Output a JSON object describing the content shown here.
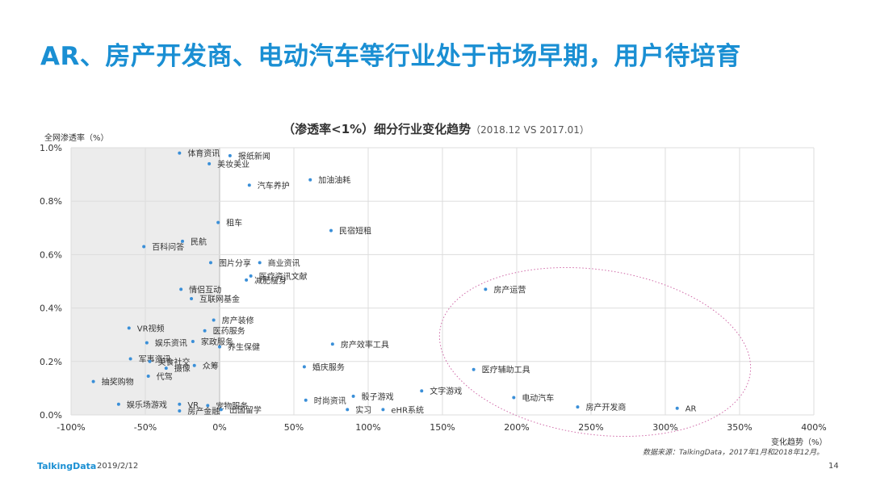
{
  "page": {
    "title": "AR、房产开发商、电动汽车等行业处于市场早期，用户待培育",
    "chart_title_main": "（渗透率<1%）细分行业变化趋势",
    "chart_title_sub": "（2018.12  VS 2017.01）",
    "source": "数据来源：TalkingData，2017年1月和2018年12月。",
    "logo": "TalkingData",
    "date": "2019/2/12",
    "page_number": "14"
  },
  "chart_data": {
    "type": "scatter",
    "xlabel": "变化趋势（%）",
    "ylabel": "全网渗透率（%）",
    "xlim": [
      -100,
      400
    ],
    "ylim": [
      0,
      1.0
    ],
    "x_ticks": [
      "-100%",
      "-50%",
      "0%",
      "50%",
      "100%",
      "150%",
      "200%",
      "250%",
      "300%",
      "350%",
      "400%"
    ],
    "y_ticks": [
      "0.0%",
      "0.2%",
      "0.4%",
      "0.6%",
      "0.8%",
      "1.0%"
    ],
    "point_color": "#3a8fd8",
    "shaded_region_color": "#ececec",
    "ellipse_color": "#d06aa8",
    "points": [
      {
        "label": "体育资讯",
        "x": -27,
        "y": 0.98
      },
      {
        "label": "报纸新闻",
        "x": 7,
        "y": 0.97
      },
      {
        "label": "美妆美业",
        "x": -7,
        "y": 0.94
      },
      {
        "label": "汽车养护",
        "x": 20,
        "y": 0.86
      },
      {
        "label": "加油油耗",
        "x": 61,
        "y": 0.88
      },
      {
        "label": "租车",
        "x": -1,
        "y": 0.72
      },
      {
        "label": "民宿短租",
        "x": 75,
        "y": 0.69
      },
      {
        "label": "民航",
        "x": -25,
        "y": 0.65
      },
      {
        "label": "百科问答",
        "x": -51,
        "y": 0.63
      },
      {
        "label": "图片分享",
        "x": -6,
        "y": 0.57
      },
      {
        "label": "商业资讯",
        "x": 27,
        "y": 0.57
      },
      {
        "label": "医疗资讯文献",
        "x": 21,
        "y": 0.52
      },
      {
        "label": "减肥瘦身",
        "x": 18,
        "y": 0.505
      },
      {
        "label": "情侣互动",
        "x": -26,
        "y": 0.47
      },
      {
        "label": "互联网基金",
        "x": -19,
        "y": 0.435
      },
      {
        "label": "房产运营",
        "x": 179,
        "y": 0.47
      },
      {
        "label": "房产装修",
        "x": -4,
        "y": 0.355
      },
      {
        "label": "VR视频",
        "x": -61,
        "y": 0.325
      },
      {
        "label": "医药服务",
        "x": -10,
        "y": 0.315
      },
      {
        "label": "娱乐资讯",
        "x": -49,
        "y": 0.27
      },
      {
        "label": "家政服务",
        "x": -18,
        "y": 0.275
      },
      {
        "label": "房产效率工具",
        "x": 76,
        "y": 0.265
      },
      {
        "label": "养生保健",
        "x": 0,
        "y": 0.255
      },
      {
        "label": "军事资讯",
        "x": -60,
        "y": 0.21
      },
      {
        "label": "美食社交",
        "x": -47,
        "y": 0.2
      },
      {
        "label": "众筹",
        "x": -17,
        "y": 0.185
      },
      {
        "label": "摄像",
        "x": -36,
        "y": 0.175
      },
      {
        "label": "婚庆服务",
        "x": 57,
        "y": 0.18
      },
      {
        "label": "医疗辅助工具",
        "x": 171,
        "y": 0.17
      },
      {
        "label": "代驾",
        "x": -48,
        "y": 0.145
      },
      {
        "label": "抽奖购物",
        "x": -85,
        "y": 0.125
      },
      {
        "label": "文字游戏",
        "x": 136,
        "y": 0.09
      },
      {
        "label": "骰子游戏",
        "x": 90,
        "y": 0.07
      },
      {
        "label": "电动汽车",
        "x": 198,
        "y": 0.065
      },
      {
        "label": "时尚资讯",
        "x": 58,
        "y": 0.055
      },
      {
        "label": "娱乐场游戏",
        "x": -68,
        "y": 0.04
      },
      {
        "label": "VR",
        "x": -27,
        "y": 0.04
      },
      {
        "label": "宠物服务",
        "x": -8,
        "y": 0.035
      },
      {
        "label": "房产开发商",
        "x": 241,
        "y": 0.03
      },
      {
        "label": "AR",
        "x": 308,
        "y": 0.025
      },
      {
        "label": "房产金融",
        "x": -27,
        "y": 0.015
      },
      {
        "label": "出国留学",
        "x": 1,
        "y": 0.02
      },
      {
        "label": "实习",
        "x": 86,
        "y": 0.02
      },
      {
        "label": "eHR系统",
        "x": 110,
        "y": 0.02
      }
    ],
    "labels_offset": {}
  }
}
